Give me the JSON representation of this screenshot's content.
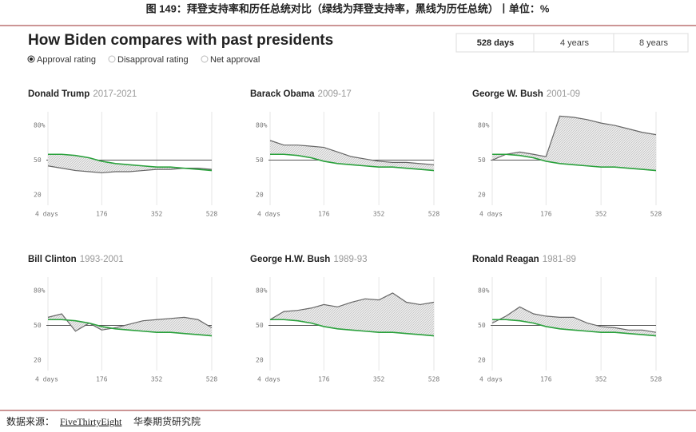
{
  "header": {
    "figure_title": "图 149：拜登支持率和历任总统对比（绿线为拜登支持率，黑线为历任总统）丨单位：%",
    "heading": "How Biden compares with past presidents",
    "options": [
      "Approval rating",
      "Disapproval rating",
      "Net approval"
    ],
    "tabs": [
      "528 days",
      "4 years",
      "8 years"
    ]
  },
  "footer": {
    "label": "数据来源：",
    "source": "FiveThirtyEight",
    "org": "华泰期货研究院"
  },
  "chart_data": [
    {
      "type": "line",
      "title": "Donald Trump",
      "subtitle": "2017-2021",
      "x": [
        4,
        48,
        92,
        136,
        176,
        220,
        264,
        308,
        352,
        396,
        440,
        484,
        528
      ],
      "series": [
        {
          "color": "#2aa13c",
          "values": [
            55,
            55,
            54,
            52,
            49,
            47,
            46,
            45,
            44,
            44,
            43,
            42,
            41
          ]
        },
        {
          "color": "#666666",
          "values": [
            45,
            43,
            41,
            40,
            39,
            40,
            40,
            41,
            42,
            42,
            43,
            43,
            42
          ]
        }
      ],
      "xlim": [
        4,
        528
      ],
      "xticks": [
        {
          "value": 4,
          "label": "4 days"
        },
        176,
        352,
        528
      ],
      "ylim": [
        11,
        89
      ],
      "yticks": [
        {
          "value": 80,
          "label": "80%"
        },
        50,
        20
      ]
    },
    {
      "type": "line",
      "title": "Barack Obama",
      "subtitle": "2009-17",
      "x": [
        4,
        48,
        92,
        136,
        176,
        220,
        264,
        308,
        352,
        396,
        440,
        484,
        528
      ],
      "series": [
        {
          "color": "#2aa13c",
          "values": [
            55,
            55,
            54,
            52,
            49,
            47,
            46,
            45,
            44,
            44,
            43,
            42,
            41
          ]
        },
        {
          "color": "#666666",
          "values": [
            67,
            63,
            63,
            62,
            61,
            57,
            53,
            51,
            49,
            48,
            48,
            47,
            46
          ]
        }
      ],
      "xlim": [
        4,
        528
      ],
      "xticks": [
        {
          "value": 4,
          "label": "4 days"
        },
        176,
        352,
        528
      ],
      "ylim": [
        11,
        89
      ],
      "yticks": [
        {
          "value": 80,
          "label": "80%"
        },
        50,
        20
      ]
    },
    {
      "type": "line",
      "title": "George W. Bush",
      "subtitle": "2001-09",
      "x": [
        4,
        48,
        92,
        136,
        176,
        220,
        264,
        308,
        352,
        396,
        440,
        484,
        528
      ],
      "series": [
        {
          "color": "#2aa13c",
          "values": [
            55,
            55,
            54,
            52,
            49,
            47,
            46,
            45,
            44,
            44,
            43,
            42,
            41
          ]
        },
        {
          "color": "#666666",
          "values": [
            50,
            55,
            57,
            55,
            53,
            88,
            87,
            85,
            82,
            80,
            77,
            74,
            72
          ]
        }
      ],
      "xlim": [
        4,
        528
      ],
      "xticks": [
        {
          "value": 4,
          "label": "4 days"
        },
        176,
        352,
        528
      ],
      "ylim": [
        11,
        89
      ],
      "yticks": [
        {
          "value": 80,
          "label": "80%"
        },
        50,
        20
      ]
    },
    {
      "type": "line",
      "title": "Bill Clinton",
      "subtitle": "1993-2001",
      "x": [
        4,
        48,
        92,
        136,
        176,
        220,
        264,
        308,
        352,
        396,
        440,
        484,
        528
      ],
      "series": [
        {
          "color": "#2aa13c",
          "values": [
            55,
            55,
            54,
            52,
            49,
            47,
            46,
            45,
            44,
            44,
            43,
            42,
            41
          ]
        },
        {
          "color": "#666666",
          "values": [
            57,
            60,
            45,
            52,
            46,
            48,
            51,
            54,
            55,
            56,
            57,
            55,
            48
          ]
        }
      ],
      "xlim": [
        4,
        528
      ],
      "xticks": [
        {
          "value": 4,
          "label": "4 days"
        },
        176,
        352,
        528
      ],
      "ylim": [
        11,
        89
      ],
      "yticks": [
        {
          "value": 80,
          "label": "80%"
        },
        50,
        20
      ]
    },
    {
      "type": "line",
      "title": "George H.W. Bush",
      "subtitle": "1989-93",
      "x": [
        4,
        48,
        92,
        136,
        176,
        220,
        264,
        308,
        352,
        396,
        440,
        484,
        528
      ],
      "series": [
        {
          "color": "#2aa13c",
          "values": [
            55,
            55,
            54,
            52,
            49,
            47,
            46,
            45,
            44,
            44,
            43,
            42,
            41
          ]
        },
        {
          "color": "#666666",
          "values": [
            55,
            62,
            63,
            65,
            68,
            66,
            70,
            73,
            72,
            78,
            70,
            68,
            70
          ]
        }
      ],
      "xlim": [
        4,
        528
      ],
      "xticks": [
        {
          "value": 4,
          "label": "4 days"
        },
        176,
        352,
        528
      ],
      "ylim": [
        11,
        89
      ],
      "yticks": [
        {
          "value": 80,
          "label": "80%"
        },
        50,
        20
      ]
    },
    {
      "type": "line",
      "title": "Ronald Reagan",
      "subtitle": "1981-89",
      "x": [
        4,
        48,
        92,
        136,
        176,
        220,
        264,
        308,
        352,
        396,
        440,
        484,
        528
      ],
      "series": [
        {
          "color": "#2aa13c",
          "values": [
            55,
            55,
            54,
            52,
            49,
            47,
            46,
            45,
            44,
            44,
            43,
            42,
            41
          ]
        },
        {
          "color": "#666666",
          "values": [
            52,
            58,
            66,
            60,
            58,
            57,
            57,
            52,
            49,
            48,
            46,
            46,
            44
          ]
        }
      ],
      "xlim": [
        4,
        528
      ],
      "xticks": [
        {
          "value": 4,
          "label": "4 days"
        },
        176,
        352,
        528
      ],
      "ylim": [
        11,
        89
      ],
      "yticks": [
        {
          "value": 80,
          "label": "80%"
        },
        50,
        20
      ]
    }
  ]
}
